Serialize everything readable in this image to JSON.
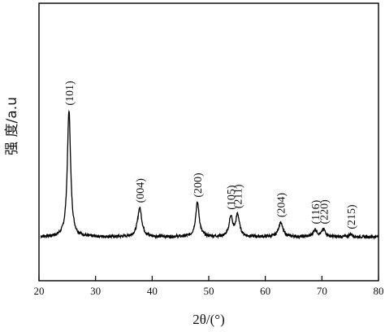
{
  "chart_data": {
    "type": "line",
    "title": "",
    "xlabel": "2θ/(°)",
    "ylabel": "强 度/a.u",
    "xlim": [
      20,
      80
    ],
    "xticks": [
      20,
      30,
      40,
      50,
      60,
      70,
      80
    ],
    "ylim": [
      0,
      100
    ],
    "y_tick_labels": false,
    "grid": false,
    "legend": "none",
    "series": [
      {
        "color": "#000000",
        "baseline": 4,
        "noise": 0.8,
        "peaks": [
          {
            "label": "(101)",
            "x": 25.3,
            "height": 70,
            "width": 0.35
          },
          {
            "label": "(004)",
            "x": 37.8,
            "height": 16,
            "width": 0.45
          },
          {
            "label": "(200)",
            "x": 48.0,
            "height": 19,
            "width": 0.38
          },
          {
            "label": "(105)",
            "x": 53.9,
            "height": 11,
            "width": 0.35
          },
          {
            "label": "(211)",
            "x": 55.1,
            "height": 12,
            "width": 0.4
          },
          {
            "label": "(204)",
            "x": 62.7,
            "height": 8,
            "width": 0.45
          },
          {
            "label": "(116)",
            "x": 68.8,
            "height": 4,
            "width": 0.4
          },
          {
            "label": "(220)",
            "x": 70.3,
            "height": 4,
            "width": 0.4
          },
          {
            "label": "(215)",
            "x": 75.1,
            "height": 1.5,
            "width": 0.35
          }
        ]
      }
    ]
  }
}
